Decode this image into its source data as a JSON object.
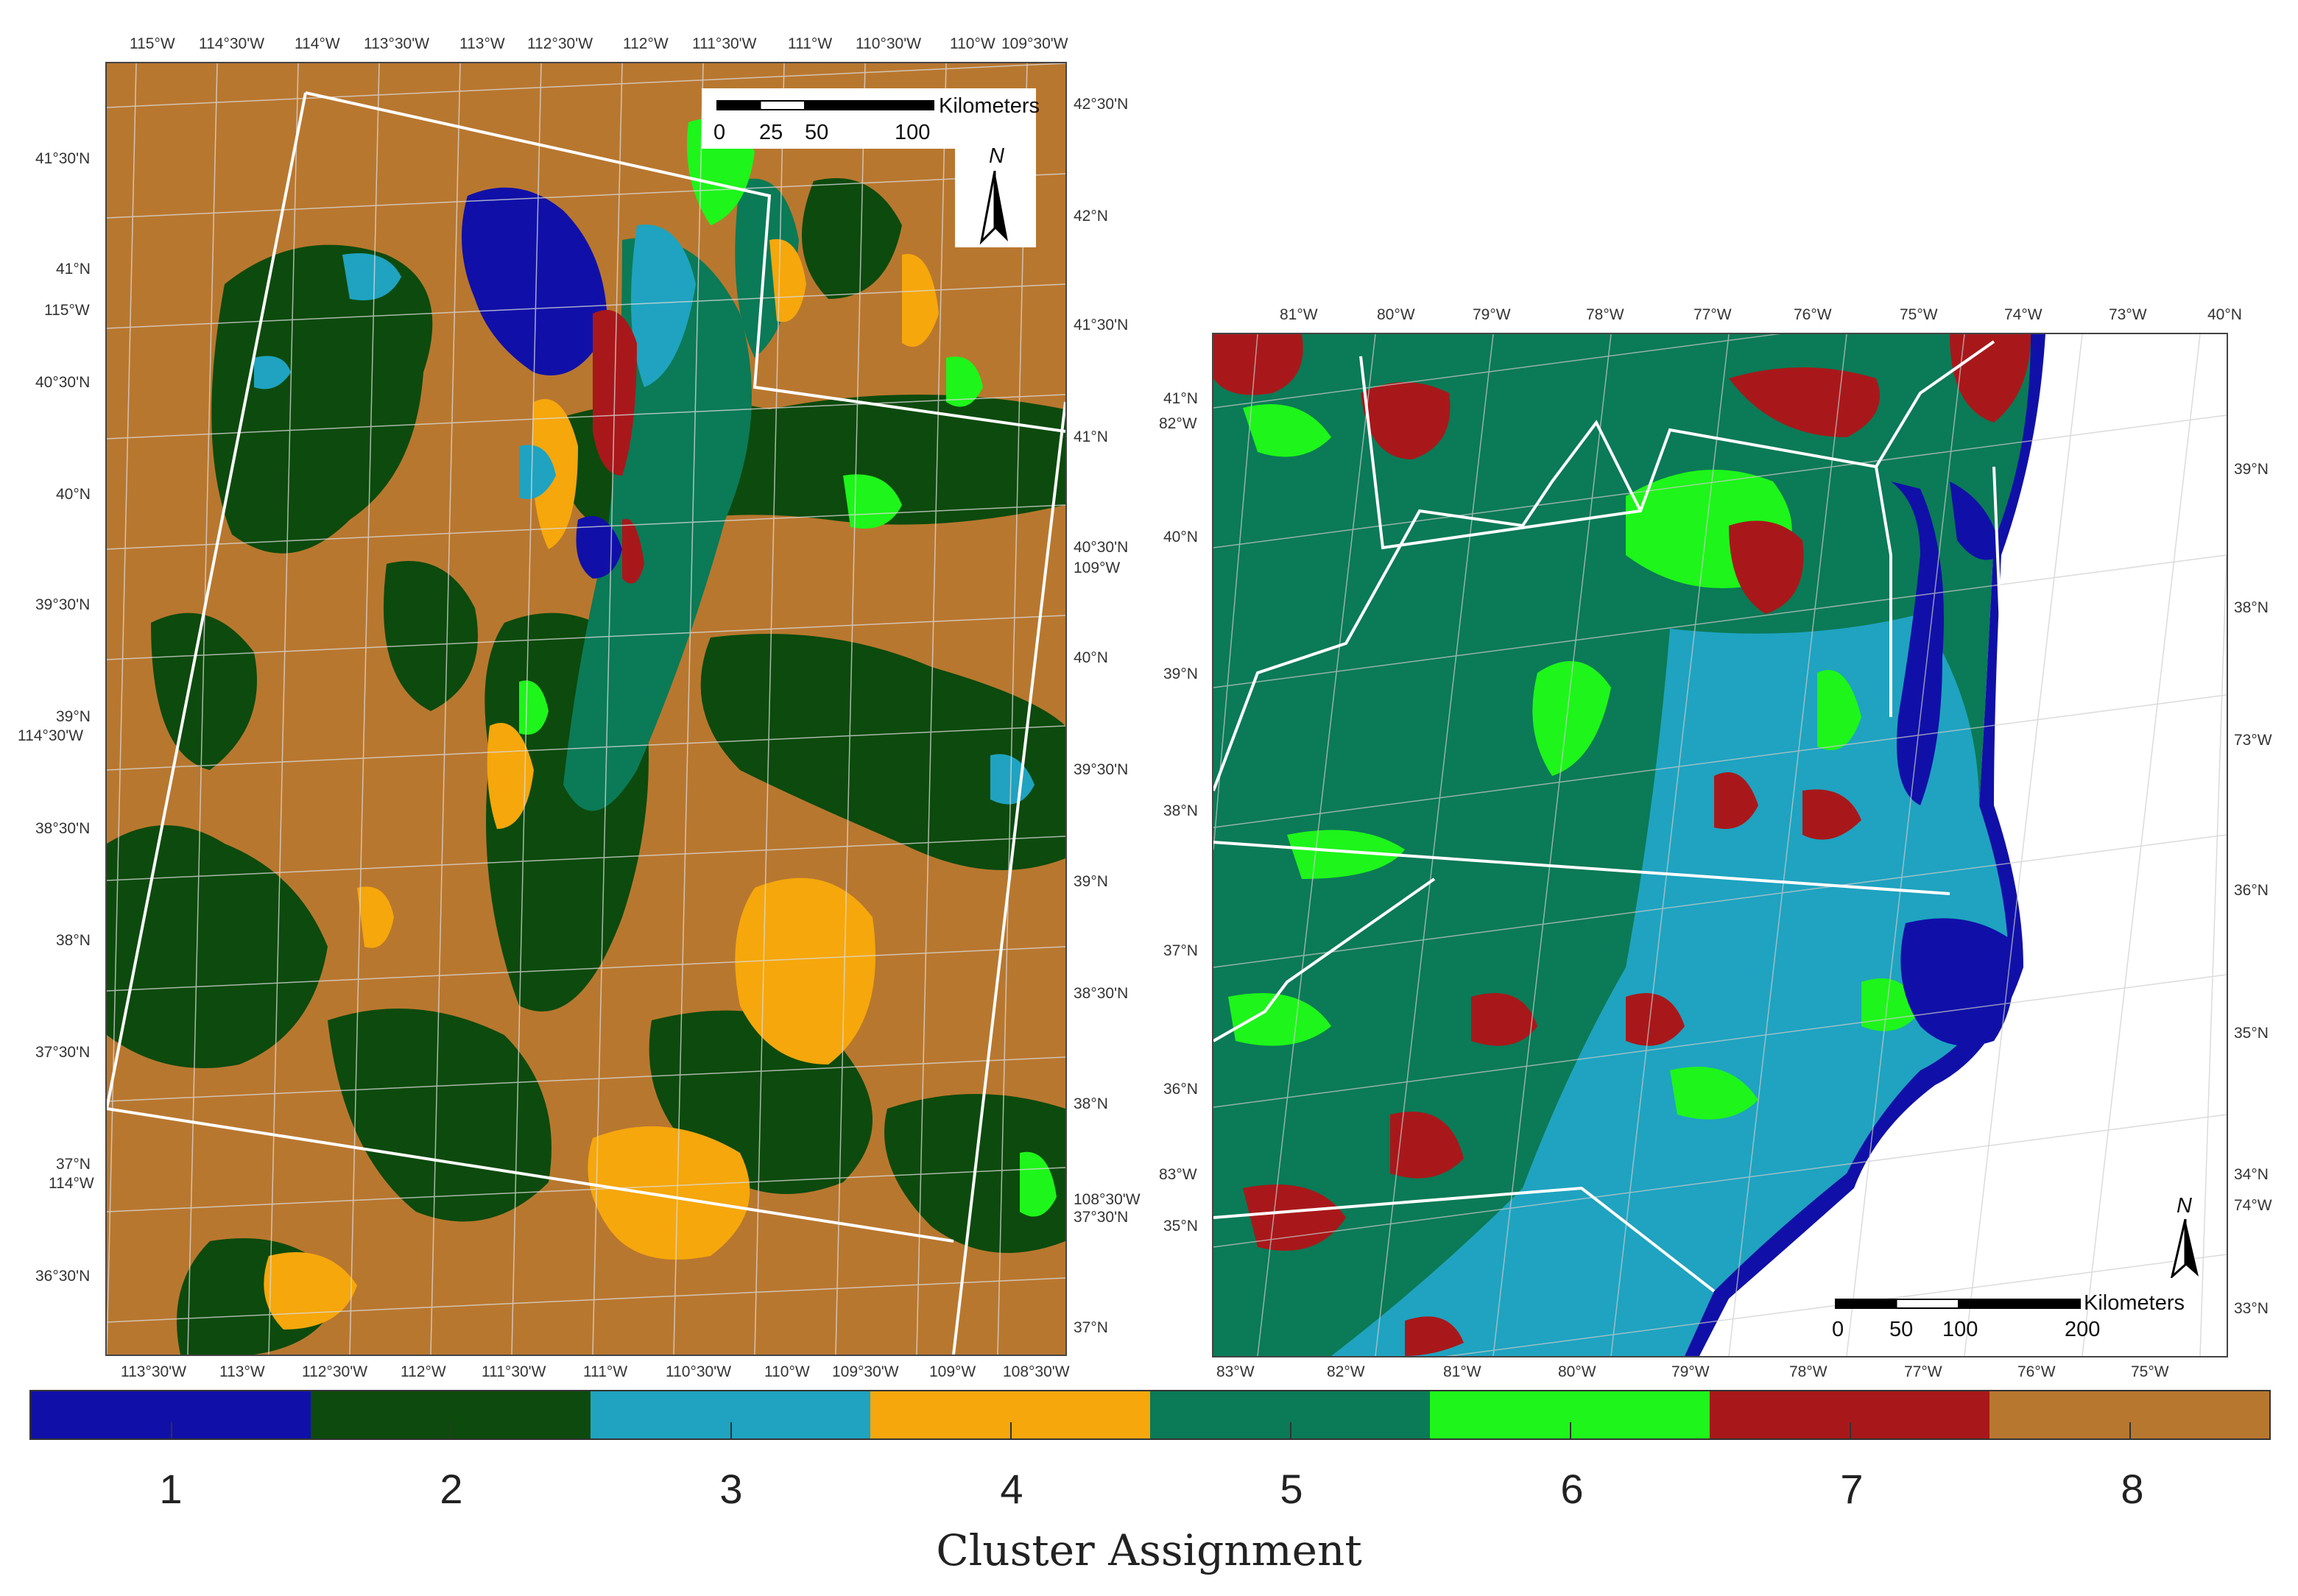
{
  "left_map": {
    "top_labels": [
      "115°W",
      "114°30'W",
      "114°W",
      "113°30'W",
      "113°W",
      "112°30'W",
      "112°W",
      "111°30'W",
      "111°W",
      "110°30'W",
      "110°W",
      "109°30'W"
    ],
    "bottom_labels": [
      "113°30'W",
      "113°W",
      "112°30'W",
      "112°W",
      "111°30'W",
      "111°W",
      "110°30'W",
      "110°W",
      "109°30'W",
      "109°W",
      "108°30'W"
    ],
    "left_labels": [
      "41°30'N",
      "41°N",
      "115°W",
      "40°30'N",
      "40°N",
      "39°30'N",
      "39°N",
      "114°30'W",
      "38°30'N",
      "38°N",
      "37°30'N",
      "37°N",
      "114°W",
      "36°30'N"
    ],
    "right_labels": [
      "42°30'N",
      "42°N",
      "41°30'N",
      "41°N",
      "40°30'N",
      "109°W",
      "40°N",
      "39°30'N",
      "39°N",
      "38°30'N",
      "38°N",
      "108°30'W",
      "37°30'N",
      "37°N"
    ],
    "scale": {
      "ticks": [
        "0",
        "25",
        "50",
        "100"
      ],
      "unit": "Kilometers"
    },
    "north": "N"
  },
  "right_map": {
    "top_labels": [
      "81°W",
      "80°W",
      "79°W",
      "78°W",
      "77°W",
      "76°W",
      "75°W",
      "74°W",
      "73°W",
      "40°N"
    ],
    "bottom_labels": [
      "83°W",
      "82°W",
      "81°W",
      "80°W",
      "79°W",
      "78°W",
      "77°W",
      "76°W",
      "75°W"
    ],
    "left_labels": [
      "41°N",
      "82°W",
      "40°N",
      "39°N",
      "38°N",
      "37°N",
      "36°N",
      "83°W",
      "35°N"
    ],
    "right_labels": [
      "39°N",
      "38°N",
      "73°W",
      "36°N",
      "35°N",
      "34°N",
      "74°W",
      "33°N"
    ],
    "scale": {
      "ticks": [
        "0",
        "50",
        "100",
        "200"
      ],
      "unit": "Kilometers"
    },
    "north": "N"
  },
  "legend": {
    "title": "Cluster Assignment",
    "clusters": [
      {
        "label": "1",
        "color": "#1010a8"
      },
      {
        "label": "2",
        "color": "#0d4a0d"
      },
      {
        "label": "3",
        "color": "#1fa3c0"
      },
      {
        "label": "4",
        "color": "#f5a70c"
      },
      {
        "label": "5",
        "color": "#0b7a56"
      },
      {
        "label": "6",
        "color": "#1ef51a"
      },
      {
        "label": "7",
        "color": "#a8181a"
      },
      {
        "label": "8",
        "color": "#b8772f"
      }
    ]
  }
}
